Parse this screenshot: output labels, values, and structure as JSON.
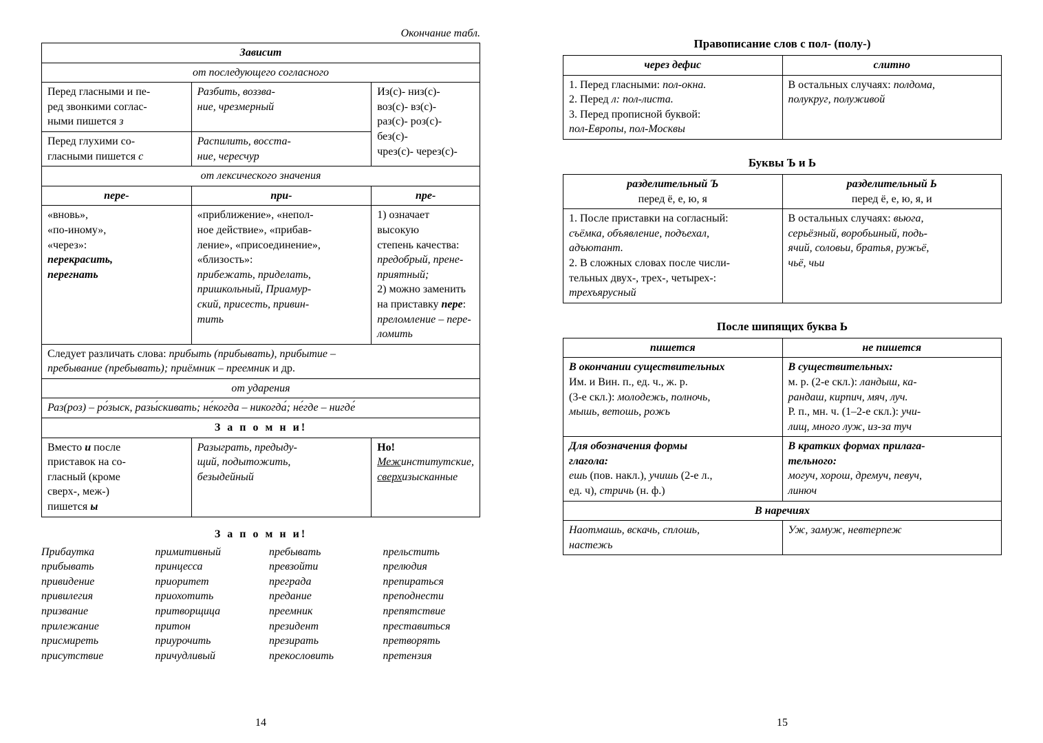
{
  "left": {
    "continuation": "Окончание табл.",
    "t1": {
      "h_zavisit": "Зависит",
      "h_consonant": "от последующего согласного",
      "r1c1_a": "Перед гласными и пе-",
      "r1c1_b": "ред звонкими соглас-",
      "r1c1_c": "ными пишется ",
      "r1c1_z": "з",
      "r1c2_a": "Разбить, воззва-",
      "r1c2_b": "ние, чрезмерный",
      "r2c1_a": "Перед глухими со-",
      "r2c1_b": "гласными пишется ",
      "r2c1_s": "с",
      "r2c2_a": "Распилить, восста-",
      "r2c2_b": "ние, чересчур",
      "col3_1": "Из(с)-   низ(с)-",
      "col3_2": "воз(с)-  вз(с)-",
      "col3_3": "раз(с)-  роз(с)-",
      "col3_4": "без(с)-",
      "col3_5": "чрез(с)-  через(с)-",
      "h_lexical": "от лексического значения",
      "pere": "пере-",
      "pri": "при-",
      "pre": "пре-",
      "pere_body_1": "«вновь»,",
      "pere_body_2": "«по-иному»,",
      "pere_body_3": "«через»:",
      "pere_body_4": "перекрасить,",
      "pere_body_5": "перегнать",
      "pri_body_1": "«приближение», «непол-",
      "pri_body_2": "ное действие», «прибав-",
      "pri_body_3": "ление», «присоединение»,",
      "pri_body_4": "«близость»:",
      "pri_body_5": "прибежать, приделать,",
      "pri_body_6": "пришкольный, Приамур-",
      "pri_body_7": "ский, присесть, привин-",
      "pri_body_8": "тить",
      "pre_body_1": "1) означает высокую",
      "pre_body_2": "степень качества:",
      "pre_body_3": "предобрый, прене-",
      "pre_body_4": "приятный;",
      "pre_body_5": "2) можно заменить",
      "pre_body_6": "на приставку ",
      "pre_body_6b": "пере",
      "pre_body_6c": ":",
      "pre_body_7": "преломление – пере-",
      "pre_body_8": "ломить",
      "note1_a": "Следует различать слова: ",
      "note1_b": "прибыть (прибывать), прибытие –",
      "note1_c": "пребывание (пребывать); приёмник – преемник",
      "note1_d": " и др.",
      "h_stress": "от ударения",
      "stress_row": "Раз(роз) – ро́зыск, разы́скивать; не́когда – никогда́; не́где – нигде́",
      "h_remember": "З а п о м н и!",
      "rem_c1_1": "Вместо ",
      "rem_c1_1b": "и",
      "rem_c1_1c": " после",
      "rem_c1_2": "приставок на со-",
      "rem_c1_3": "гласный (кроме",
      "rem_c1_4": "сверх-, меж-)",
      "rem_c1_5": "пишется ",
      "rem_c1_5b": "ы",
      "rem_c2_1": "Разыграть, предыду-",
      "rem_c2_2": "щий, подытожить,",
      "rem_c2_3": "безыдейный",
      "rem_c3_h": "Но!",
      "rem_c3_1_a": "Меж",
      "rem_c3_1_b": "институтские,",
      "rem_c3_2_a": "сверх",
      "rem_c3_2_b": "изысканные"
    },
    "remember_title": "З а п о м н и!",
    "words": {
      "c1": [
        "Прибаутка",
        "прибывать",
        "привидение",
        "привилегия",
        "призвание",
        "прилежание",
        "присмиреть",
        "присутствие"
      ],
      "c2": [
        "примитивный",
        "принцесса",
        "приоритет",
        "приохотить",
        "притворщица",
        "притон",
        "приурочить",
        "причудливый"
      ],
      "c3": [
        "пребывать",
        "превзойти",
        "преграда",
        "предание",
        "преемник",
        "президент",
        "презирать",
        "прекословить"
      ],
      "c4": [
        "прельстить",
        "прелюдия",
        "препираться",
        "преподнести",
        "препятствие",
        "преставиться",
        "претворять",
        "претензия"
      ]
    },
    "pagenum": "14"
  },
  "right": {
    "title_pol": "Правописание слов с пол- (полу-)",
    "pol": {
      "h1": "через дефис",
      "h2": "слитно",
      "c1_1a": "1. Перед гласными: ",
      "c1_1b": "пол-окна.",
      "c1_2a": "2. Перед ",
      "c1_2b": "л: пол-листа.",
      "c1_3": "3. Перед прописной буквой:",
      "c1_4": "пол-Европы, пол-Москвы",
      "c2_1a": "В остальных случаях: ",
      "c2_1b": "полдома,",
      "c2_2": "полукруг, полуживой"
    },
    "title_yer": "Буквы Ъ и Ь",
    "yer": {
      "h1a": "разделительный Ъ",
      "h1b": "перед ё, е, ю, я",
      "h2a": "разделительный Ь",
      "h2b": "перед ё, е, ю, я, и",
      "c1_1": "1. После приставки на согласный:",
      "c1_2": "съёмка, объявление, подъехал,",
      "c1_3": "адъютант.",
      "c1_4": "2. В сложных словах после числи-",
      "c1_5": "тельных двух-, трех-, четырех-:",
      "c1_6": "трехъярусный",
      "c2_1a": "В остальных случаях: ",
      "c2_1b": "вьюга,",
      "c2_2": "серьёзный, воробьиный, подь-",
      "c2_3": "ячий, соловьи, братья, ружьё,",
      "c2_4": "чьё, чьи"
    },
    "title_shi": "После шипящих буква Ь",
    "shi": {
      "h1": "пишется",
      "h2": "не пишется",
      "r1c1_h": "В окончании существительных",
      "r1c1_1": "Им. и Вин. п., ед. ч., ж. р.",
      "r1c1_2a": "(3-е скл.): ",
      "r1c1_2b": "молодежь, полночь,",
      "r1c1_3": "мышь, ветошь, рожь",
      "r1c2_h": "В существительных:",
      "r1c2_1a": "м. р. (2-е скл.): ",
      "r1c2_1b": "ландыш, ка-",
      "r1c2_2": "рандаш, кирпич, мяч, луч.",
      "r1c2_3a": "Р. п., мн. ч. (1–2-е скл.): ",
      "r1c2_3b": "учи-",
      "r1c2_4": "лищ, много луж, из-за туч",
      "r2c1_h1": "Для обозначения формы",
      "r2c1_h2": "глагола:",
      "r2c1_1a": "ешь",
      "r2c1_1b": " (пов. накл.), ",
      "r2c1_1c": "учишь",
      "r2c1_1d": " (2-е л.,",
      "r2c1_2a": "ед. ч), ",
      "r2c1_2b": "стричь",
      "r2c1_2c": " (н. ф.)",
      "r2c2_h1": "В кратких формах прилага-",
      "r2c2_h2": "тельного:",
      "r2c2_1": "могуч, хорош, дремуч, певуч,",
      "r2c2_2": "линюч",
      "r3_h": "В наречиях",
      "r3c1_1": "Наотмашь, вскачь, сплошь,",
      "r3c1_2": "настежь",
      "r3c2": "Уж, замуж, невтерпеж"
    },
    "pagenum": "15"
  }
}
